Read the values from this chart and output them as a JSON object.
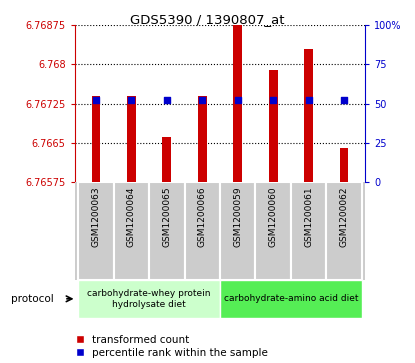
{
  "title": "GDS5390 / 1390807_at",
  "samples": [
    "GSM1200063",
    "GSM1200064",
    "GSM1200065",
    "GSM1200066",
    "GSM1200059",
    "GSM1200060",
    "GSM1200061",
    "GSM1200062"
  ],
  "transformed_count": [
    6.7674,
    6.7674,
    6.7666,
    6.7674,
    6.76875,
    6.7679,
    6.7683,
    6.7664
  ],
  "percentile_values": [
    52,
    52,
    52,
    52,
    52,
    52,
    52,
    52
  ],
  "baseline": 6.76575,
  "ylim_left": [
    6.76575,
    6.76875
  ],
  "ylim_right": [
    0,
    100
  ],
  "yticks_left": [
    6.76575,
    6.7665,
    6.76725,
    6.768,
    6.76875
  ],
  "ytick_labels_left": [
    "6.76575",
    "6.7665",
    "6.76725",
    "6.768",
    "6.76875"
  ],
  "yticks_right": [
    0,
    25,
    50,
    75,
    100
  ],
  "ytick_labels_right": [
    "0",
    "25",
    "50",
    "75",
    "100%"
  ],
  "group1_label": "carbohydrate-whey protein\nhydrolysate diet",
  "group2_label": "carbohydrate-amino acid diet",
  "protocol_label": "protocol",
  "legend_red_label": "transformed count",
  "legend_blue_label": "percentile rank within the sample",
  "bar_color": "#cc0000",
  "dot_color": "#0000cc",
  "group1_color": "#ccffcc",
  "group2_color": "#55ee55",
  "label_area_color": "#cccccc",
  "bar_width": 0.25,
  "tick_color_left": "#cc0000",
  "tick_color_right": "#0000cc"
}
